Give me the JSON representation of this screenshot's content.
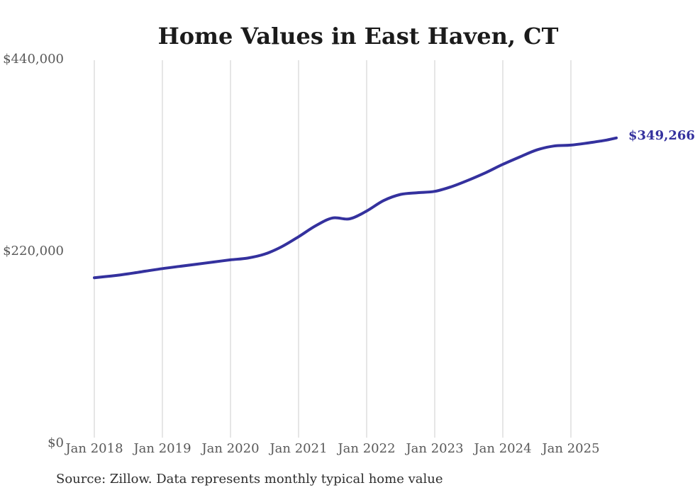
{
  "page": {
    "background_color": "#ffffff"
  },
  "chart": {
    "title": "Home Values in East Haven, CT",
    "end_label": "$349,266",
    "source_note": "Source: Zillow. Data represents monthly typical home value",
    "colors": {
      "line": "#34319e",
      "end_label": "#34319e",
      "gridline": "#cccccc",
      "tick_label": "#595959",
      "title": "#1b1b1b",
      "source": "#2e2e2e"
    }
  },
  "chart_data": {
    "type": "line",
    "title": "Home Values in East Haven, CT",
    "xlabel": "",
    "ylabel": "",
    "ylim": [
      0,
      440000
    ],
    "grid": "vertical-only",
    "legend": "none",
    "y_ticks": [
      {
        "label": "$440,000",
        "value": 440000
      },
      {
        "label": "$220,000",
        "value": 220000
      },
      {
        "label": "$0",
        "value": 0
      }
    ],
    "x_ticks": [
      {
        "label": "Jan 2018",
        "month": "2018-01"
      },
      {
        "label": "Jan 2019",
        "month": "2019-01"
      },
      {
        "label": "Jan 2020",
        "month": "2020-01"
      },
      {
        "label": "Jan 2021",
        "month": "2021-01"
      },
      {
        "label": "Jan 2022",
        "month": "2022-01"
      },
      {
        "label": "Jan 2023",
        "month": "2023-01"
      },
      {
        "label": "Jan 2024",
        "month": "2024-01"
      },
      {
        "label": "Jan 2025",
        "month": "2025-01"
      }
    ],
    "series": [
      {
        "name": "Typical home value",
        "color": "#34319e",
        "points": [
          {
            "month": "2018-01",
            "value": 189000
          },
          {
            "month": "2018-04",
            "value": 191000
          },
          {
            "month": "2018-07",
            "value": 193500
          },
          {
            "month": "2018-10",
            "value": 196500
          },
          {
            "month": "2019-01",
            "value": 199500
          },
          {
            "month": "2019-04",
            "value": 202000
          },
          {
            "month": "2019-07",
            "value": 204500
          },
          {
            "month": "2019-10",
            "value": 207000
          },
          {
            "month": "2020-01",
            "value": 209500
          },
          {
            "month": "2020-04",
            "value": 211500
          },
          {
            "month": "2020-07",
            "value": 216000
          },
          {
            "month": "2020-10",
            "value": 224500
          },
          {
            "month": "2021-01",
            "value": 236000
          },
          {
            "month": "2021-04",
            "value": 248500
          },
          {
            "month": "2021-07",
            "value": 257500
          },
          {
            "month": "2021-10",
            "value": 256500
          },
          {
            "month": "2022-01",
            "value": 265500
          },
          {
            "month": "2022-04",
            "value": 277500
          },
          {
            "month": "2022-07",
            "value": 284500
          },
          {
            "month": "2022-10",
            "value": 286500
          },
          {
            "month": "2023-01",
            "value": 288000
          },
          {
            "month": "2023-04",
            "value": 293500
          },
          {
            "month": "2023-07",
            "value": 301000
          },
          {
            "month": "2023-10",
            "value": 309500
          },
          {
            "month": "2024-01",
            "value": 319000
          },
          {
            "month": "2024-04",
            "value": 327500
          },
          {
            "month": "2024-07",
            "value": 335500
          },
          {
            "month": "2024-10",
            "value": 340000
          },
          {
            "month": "2025-01",
            "value": 341000
          },
          {
            "month": "2025-04",
            "value": 343500
          },
          {
            "month": "2025-07",
            "value": 346500
          },
          {
            "month": "2025-09",
            "value": 349266
          }
        ]
      }
    ],
    "end_annotation": {
      "label": "$349,266",
      "month": "2025-09",
      "value": 349266
    }
  }
}
